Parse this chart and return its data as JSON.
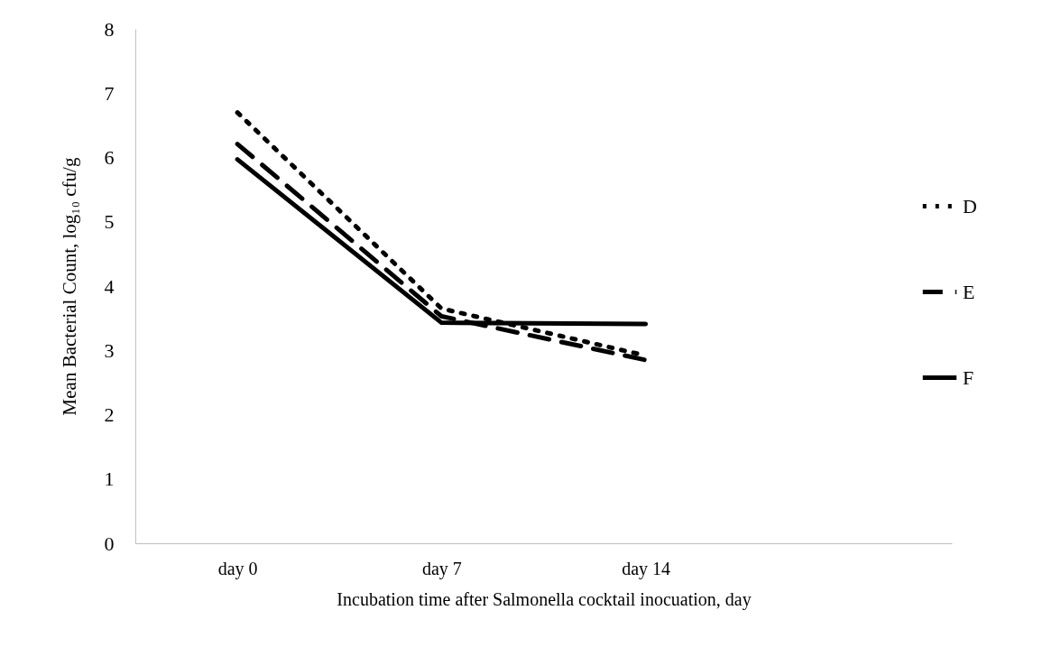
{
  "chart_data": {
    "type": "line",
    "xlabel": "Incubation time after Salmonella cocktail inocuation, day",
    "ylabel": "Mean Bacterial Count, log₁₀ cfu/g",
    "categories": [
      "day 0",
      "day 7",
      "day 14",
      null
    ],
    "ylim": [
      0,
      8
    ],
    "yticks": [
      0,
      1,
      2,
      3,
      4,
      5,
      6,
      7,
      8
    ],
    "grid": false,
    "legend": "right",
    "series": [
      {
        "name": "D",
        "color": "#000000",
        "line_style": "dotted",
        "values": [
          6.7,
          3.65,
          2.92,
          null
        ]
      },
      {
        "name": "E",
        "color": "#000000",
        "line_style": "dashed",
        "values": [
          6.21,
          3.53,
          2.85,
          null
        ]
      },
      {
        "name": "F",
        "color": "#000000",
        "line_style": "solid",
        "values": [
          5.97,
          3.43,
          3.41,
          null
        ]
      }
    ]
  }
}
